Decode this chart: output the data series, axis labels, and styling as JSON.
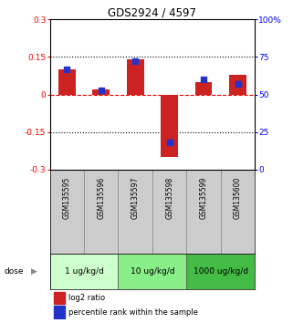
{
  "title": "GDS2924 / 4597",
  "samples": [
    "GSM135595",
    "GSM135596",
    "GSM135597",
    "GSM135598",
    "GSM135599",
    "GSM135600"
  ],
  "log2_ratio": [
    0.1,
    0.02,
    0.14,
    -0.25,
    0.05,
    0.08
  ],
  "percentile_rank": [
    67,
    53,
    72,
    18,
    60,
    57
  ],
  "left_ylim": [
    -0.3,
    0.3
  ],
  "right_ylim": [
    0,
    100
  ],
  "left_yticks": [
    -0.3,
    -0.15,
    0,
    0.15,
    0.3
  ],
  "right_yticks": [
    0,
    25,
    50,
    75,
    100
  ],
  "right_yticklabels": [
    "0",
    "25",
    "50",
    "75",
    "100%"
  ],
  "left_ytick_labels": [
    "-0.3",
    "-0.15",
    "0",
    "0.15",
    "0.3"
  ],
  "hlines": [
    0.15,
    0.0,
    -0.15
  ],
  "hline_styles": [
    "dotted",
    "dashed",
    "dotted"
  ],
  "hline_colors": [
    "black",
    "red",
    "black"
  ],
  "bar_color": "#cc2222",
  "dot_color": "#2233cc",
  "dose_groups": [
    {
      "label": "1 ug/kg/d",
      "start": 0,
      "end": 2,
      "color": "#ccffcc"
    },
    {
      "label": "10 ug/kg/d",
      "start": 2,
      "end": 4,
      "color": "#88ee88"
    },
    {
      "label": "1000 ug/kg/d",
      "start": 4,
      "end": 6,
      "color": "#44bb44"
    }
  ],
  "dose_label": "dose",
  "legend_red_label": "log2 ratio",
  "legend_blue_label": "percentile rank within the sample",
  "sample_box_color": "#cccccc",
  "bar_width": 0.5,
  "dot_size": 18
}
